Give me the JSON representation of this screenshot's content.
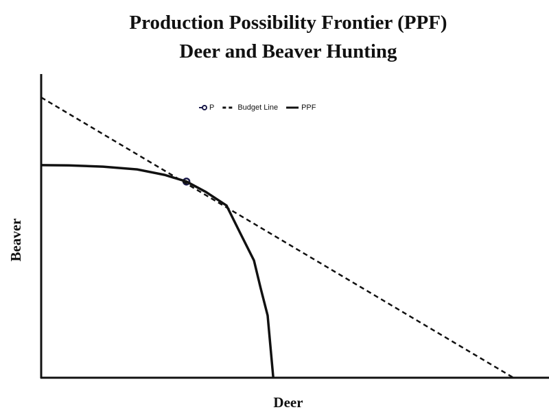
{
  "chart_data": {
    "type": "line",
    "title": "Production Possibility Frontier (PPF)",
    "subtitle": "Deer and Beaver Hunting",
    "x_label": "Deer",
    "y_label": "Beaver",
    "xlim": [
      0,
      10
    ],
    "ylim": [
      0,
      10
    ],
    "grid": false,
    "legend": "top",
    "series": [
      {
        "name": "P",
        "color": "#1a1a4a",
        "style": "marker",
        "x": [
          2.86
        ],
        "values": [
          6.46
        ]
      },
      {
        "name": "Budget Line",
        "color": "#111111",
        "style": "dashed",
        "x": [
          0,
          9.3
        ],
        "values": [
          9.23,
          0
        ]
      },
      {
        "name": "PPF",
        "color": "#111111",
        "style": "solid",
        "x": [
          0,
          0.54,
          1.22,
          1.89,
          2.43,
          2.86,
          3.24,
          3.65,
          3.92,
          4.19,
          4.32,
          4.46,
          4.57
        ],
        "values": [
          7.0,
          6.99,
          6.95,
          6.86,
          6.68,
          6.46,
          6.12,
          5.67,
          4.76,
          3.86,
          2.96,
          2.05,
          0
        ]
      }
    ]
  }
}
